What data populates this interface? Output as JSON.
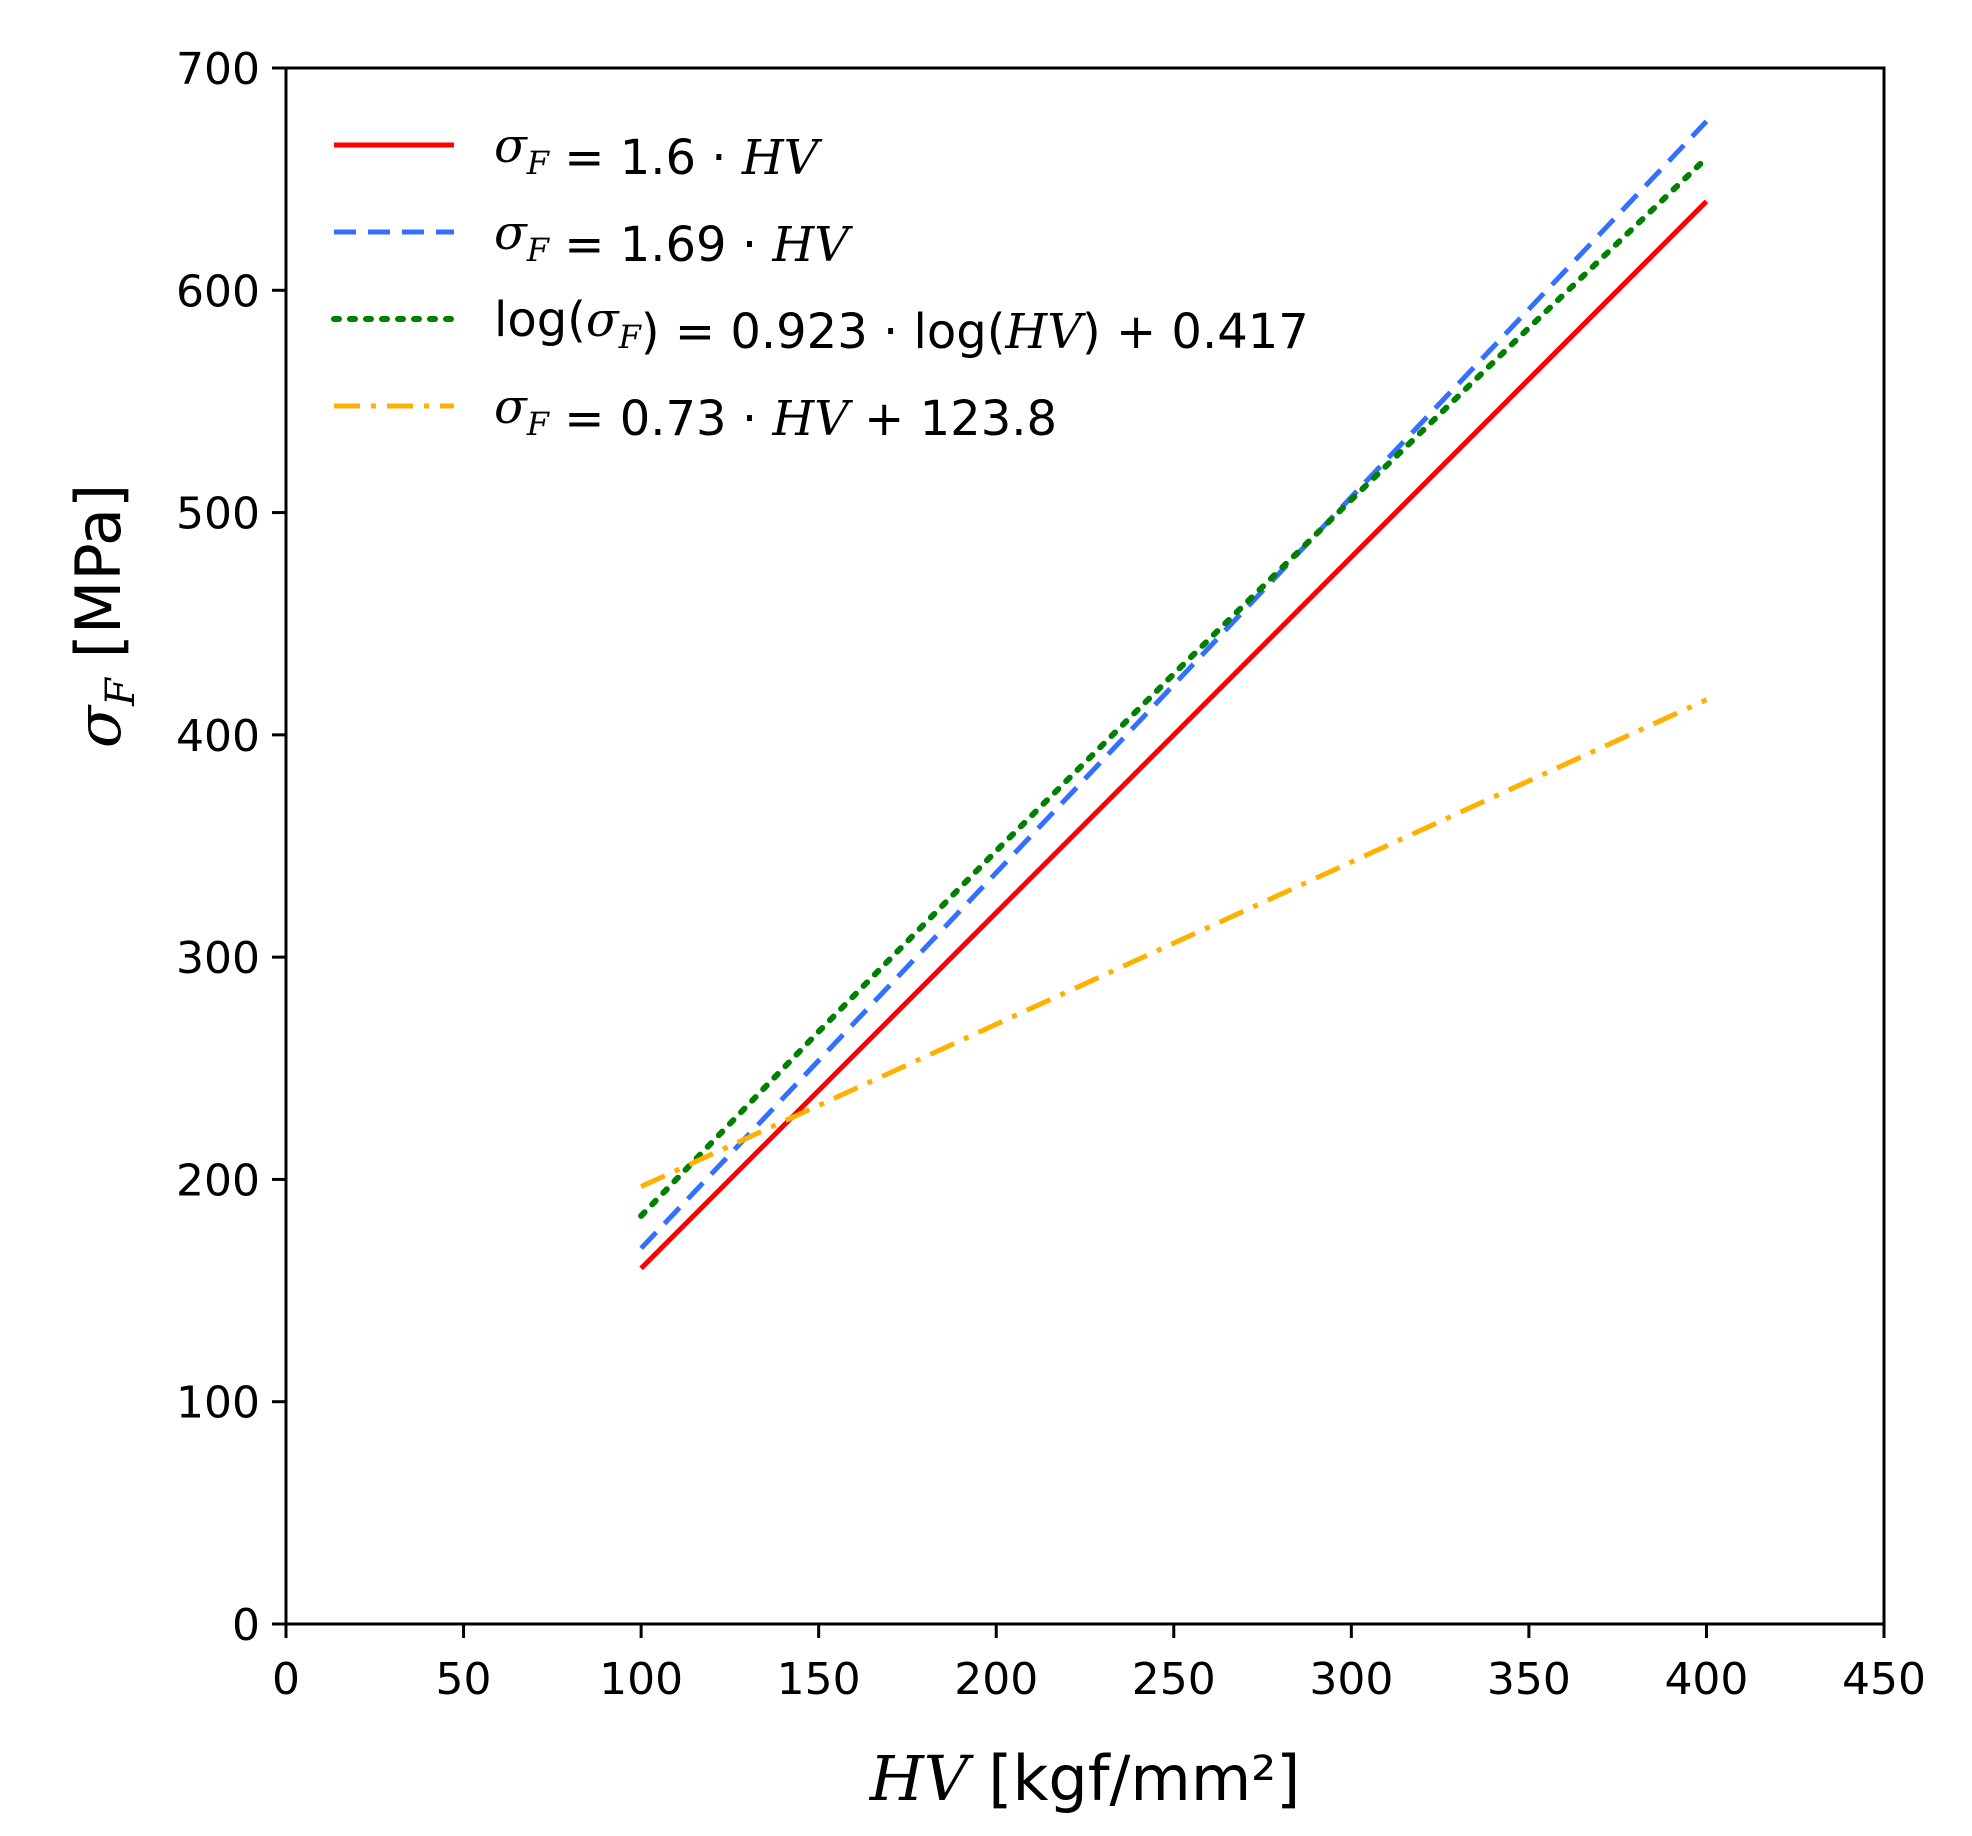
{
  "chart_data": {
    "type": "line",
    "title": "",
    "xlabel": {
      "italic": "HV",
      "rest": " [kgf/mm²]"
    },
    "ylabel": {
      "symbol": "σ",
      "subscript": "F",
      "rest": " [MPa]"
    },
    "xlim": [
      0,
      450
    ],
    "ylim": [
      0,
      700
    ],
    "xticks": [
      0,
      50,
      100,
      150,
      200,
      250,
      300,
      350,
      400,
      450
    ],
    "yticks": [
      0,
      100,
      200,
      300,
      400,
      500,
      600,
      700
    ],
    "grid": false,
    "legend_position": "top-left",
    "x": [
      100,
      150,
      200,
      250,
      300,
      350,
      400
    ],
    "series": [
      {
        "name": "σF = 1.6 · HV",
        "color": "#ff0000",
        "style": "solid",
        "values": [
          160,
          240,
          320,
          400,
          480,
          560,
          640
        ],
        "legend": [
          {
            "t": "σ",
            "c": "it"
          },
          {
            "t": "F",
            "c": "sub it"
          },
          {
            "t": " = 1.6 · ",
            "c": ""
          },
          {
            "t": "HV",
            "c": "it"
          }
        ]
      },
      {
        "name": "σF = 1.69 · HV",
        "color": "#3370ff",
        "style": "dashed",
        "values": [
          169,
          253.5,
          338,
          422.5,
          507,
          591.5,
          676
        ],
        "legend": [
          {
            "t": "σ",
            "c": "it"
          },
          {
            "t": "F",
            "c": "sub it"
          },
          {
            "t": " = 1.69 · ",
            "c": ""
          },
          {
            "t": "HV",
            "c": "it"
          }
        ]
      },
      {
        "name": "log(σF) = 0.923 · log(HV) + 0.417",
        "color": "#008000",
        "style": "dotted",
        "values": [
          183.6,
          266.5,
          347.8,
          427.4,
          505.8,
          583.1,
          659.5
        ],
        "legend": [
          {
            "t": "log(",
            "c": ""
          },
          {
            "t": "σ",
            "c": "it"
          },
          {
            "t": "F",
            "c": "sub it"
          },
          {
            "t": ") = 0.923 · log(",
            "c": ""
          },
          {
            "t": "HV",
            "c": "it"
          },
          {
            "t": ") + 0.417",
            "c": ""
          }
        ]
      },
      {
        "name": "σF = 0.73 · HV + 123.8",
        "color": "#ffb000",
        "style": "dashdot",
        "values": [
          196.8,
          233.3,
          269.8,
          306.3,
          342.8,
          379.3,
          415.8
        ],
        "legend": [
          {
            "t": "σ",
            "c": "it"
          },
          {
            "t": "F",
            "c": "sub it"
          },
          {
            "t": " = 0.73 · ",
            "c": ""
          },
          {
            "t": "HV",
            "c": "it"
          },
          {
            "t": " + 123.8",
            "c": ""
          }
        ]
      }
    ]
  }
}
